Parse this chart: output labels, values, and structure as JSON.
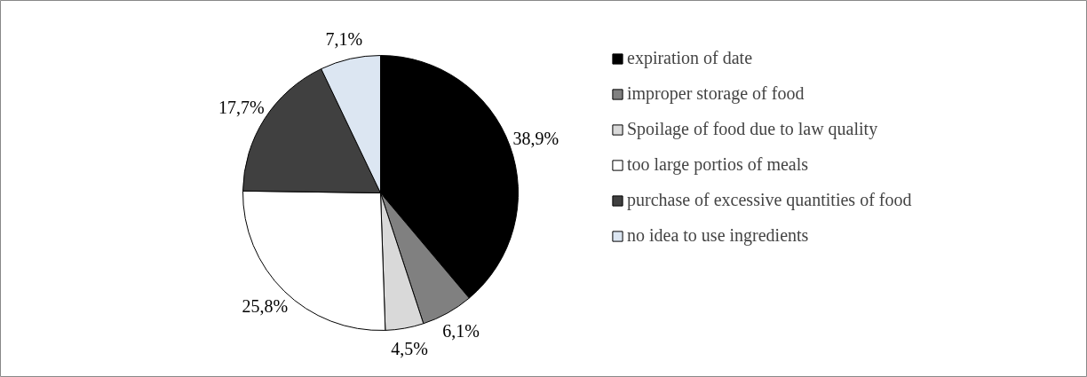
{
  "chart_data": {
    "type": "pie",
    "categories": [
      "expiration of date",
      "improper storage of food",
      "Spoilage of food due to law quality",
      "too large portios of meals",
      "purchase of excessive quantities of food",
      "no idea to use ingredients"
    ],
    "values": [
      38.9,
      6.1,
      4.5,
      25.8,
      17.7,
      7.1
    ],
    "value_labels": [
      "38,9%",
      "6,1%",
      "4,5%",
      "25,8%",
      "17,7%",
      "7,1%"
    ],
    "colors": [
      "#000000",
      "#808080",
      "#d9d9d9",
      "#ffffff",
      "#404040",
      "#dce6f2"
    ],
    "legend": "right"
  }
}
